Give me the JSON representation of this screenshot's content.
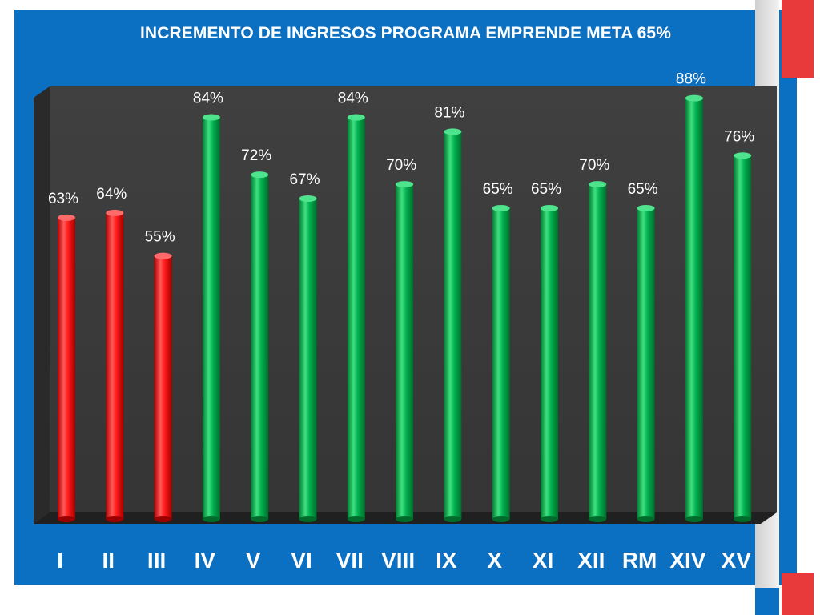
{
  "chart_data": {
    "type": "bar",
    "title": "INCREMENTO DE INGRESOS PROGRAMA EMPRENDE META 65%",
    "categories": [
      "I",
      "II",
      "III",
      "IV",
      "V",
      "VI",
      "VII",
      "VIII",
      "IX",
      "X",
      "XI",
      "XII",
      "RM",
      "XIV",
      "XV"
    ],
    "values": [
      63,
      64,
      55,
      84,
      72,
      67,
      84,
      70,
      81,
      65,
      65,
      70,
      65,
      88,
      76
    ],
    "data_labels": [
      "63%",
      "64%",
      "55%",
      "84%",
      "72%",
      "67%",
      "84%",
      "70%",
      "81%",
      "65%",
      "65%",
      "70%",
      "65%",
      "88%",
      "76%"
    ],
    "target": 65,
    "colors": {
      "below_target": "#ff1a1a",
      "at_or_above_target": "#00b050",
      "plot_background": "#3a3a3a",
      "slide_background": "#0b6fc2"
    },
    "ylim": [
      0,
      100
    ],
    "grid": false,
    "legend": "none"
  }
}
